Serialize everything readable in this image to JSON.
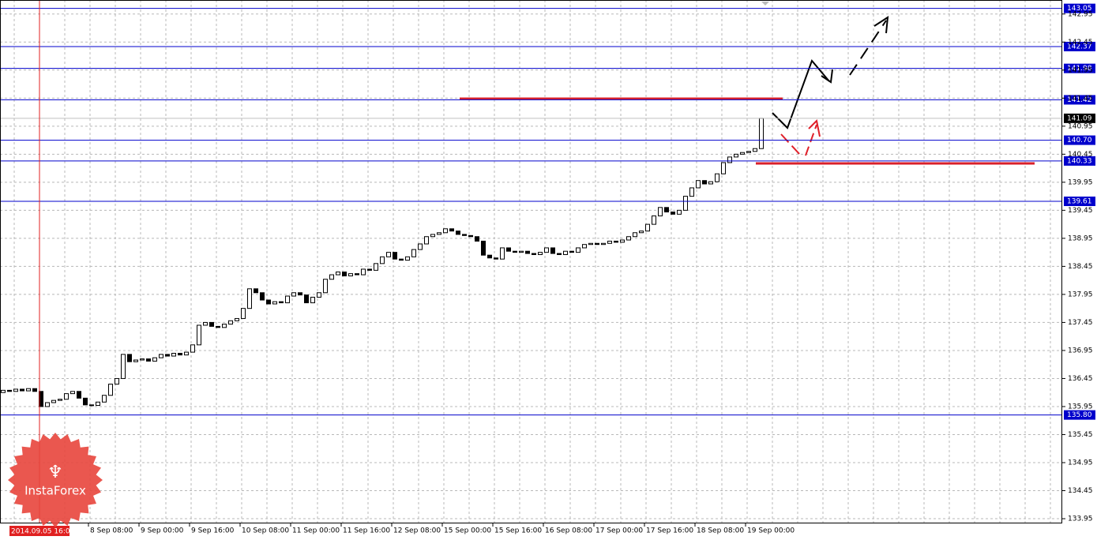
{
  "chart_data": {
    "type": "candlestick",
    "open": [
      136.2,
      136.24,
      136.22,
      136.26,
      136.23,
      136.27,
      136.22,
      135.95,
      136.02,
      136.06,
      136.08,
      136.18,
      136.22,
      136.1,
      135.98,
      135.97,
      136.03,
      136.15,
      136.35,
      136.45,
      136.88,
      136.75,
      136.78,
      136.8,
      136.76,
      136.82,
      136.88,
      136.85,
      136.9,
      136.87,
      136.92,
      137.05,
      137.4,
      137.45,
      137.38,
      137.36,
      137.42,
      137.48,
      137.52,
      137.7,
      138.05,
      137.98,
      137.85,
      137.78,
      137.82,
      137.8,
      137.92,
      137.98,
      137.94,
      137.8,
      137.9,
      137.98,
      138.22,
      138.3,
      138.35,
      138.28,
      138.32,
      138.3,
      138.4,
      138.38,
      138.5,
      138.62,
      138.7,
      138.58,
      138.56,
      138.62,
      138.75,
      138.85,
      138.98,
      139.02,
      139.05,
      139.12,
      139.08,
      139.02,
      139,
      138.98,
      138.9,
      138.65,
      138.6,
      138.58,
      138.78,
      138.72,
      138.7,
      138.72,
      138.68,
      138.66,
      138.7,
      138.78,
      138.68,
      138.66,
      138.72,
      138.7,
      138.78,
      138.84,
      138.86,
      138.84,
      138.86,
      138.9,
      138.88,
      138.92,
      138.98,
      139.05,
      139.08,
      139.2,
      139.35,
      139.5,
      139.42,
      139.38,
      139.45,
      139.7,
      139.85,
      139.98,
      139.92,
      139.96,
      140.1,
      140.3,
      140.4,
      140.45,
      140.48,
      140.5,
      140.55
    ],
    "close": [
      136.24,
      136.22,
      136.26,
      136.23,
      136.27,
      136.22,
      135.95,
      136.02,
      136.06,
      136.08,
      136.18,
      136.22,
      136.1,
      135.98,
      135.97,
      136.03,
      136.15,
      136.35,
      136.45,
      136.88,
      136.75,
      136.78,
      136.8,
      136.76,
      136.82,
      136.88,
      136.85,
      136.9,
      136.87,
      136.92,
      137.05,
      137.4,
      137.45,
      137.38,
      137.36,
      137.42,
      137.48,
      137.52,
      137.7,
      138.05,
      137.98,
      137.85,
      137.78,
      137.82,
      137.8,
      137.92,
      137.98,
      137.94,
      137.8,
      137.9,
      137.98,
      138.22,
      138.3,
      138.35,
      138.28,
      138.32,
      138.3,
      138.4,
      138.38,
      138.5,
      138.62,
      138.7,
      138.58,
      138.56,
      138.62,
      138.75,
      138.85,
      138.98,
      139.02,
      139.05,
      139.12,
      139.08,
      139.02,
      139,
      138.98,
      138.9,
      138.65,
      138.6,
      138.58,
      138.78,
      138.72,
      138.7,
      138.72,
      138.68,
      138.66,
      138.7,
      138.78,
      138.68,
      138.66,
      138.72,
      138.7,
      138.78,
      138.84,
      138.86,
      138.84,
      138.86,
      138.9,
      138.88,
      138.92,
      138.98,
      139.05,
      139.08,
      139.2,
      139.35,
      139.5,
      139.42,
      139.38,
      139.45,
      139.7,
      139.85,
      139.98,
      139.92,
      139.96,
      140.1,
      140.3,
      140.4,
      140.45,
      140.48,
      140.5,
      140.55,
      141.09
    ],
    "up_color": "#ffffff",
    "down_color": "#000000",
    "ylim": [
      133.88,
      143.2
    ],
    "yticks": [
      142.95,
      142.45,
      141.95,
      141.45,
      140.95,
      140.45,
      139.95,
      139.45,
      138.95,
      138.45,
      137.95,
      137.45,
      136.95,
      136.45,
      135.95,
      135.45,
      134.95,
      134.45,
      133.95
    ],
    "grid": true,
    "x_labels": [
      "8 Sep 08:00",
      "9 Sep 00:00",
      "9 Sep 16:00",
      "10 Sep 08:00",
      "11 Sep 00:00",
      "11 Sep 16:00",
      "12 Sep 08:00",
      "15 Sep 00:00",
      "15 Sep 16:00",
      "16 Sep 08:00",
      "17 Sep 00:00",
      "17 Sep 16:00",
      "18 Sep 08:00",
      "19 Sep 00:00"
    ],
    "levels": [
      143.05,
      142.37,
      141.98,
      141.42,
      {
        "value": 140.7,
        "label": "140.70"
      },
      140.33,
      139.61,
      {
        "value": 135.8,
        "label": "135.80"
      }
    ],
    "level_color": "#0000cc",
    "last_price": 141.09,
    "crosshair_label": "2014.09.05 16:00",
    "watermark": "InstaForex"
  }
}
